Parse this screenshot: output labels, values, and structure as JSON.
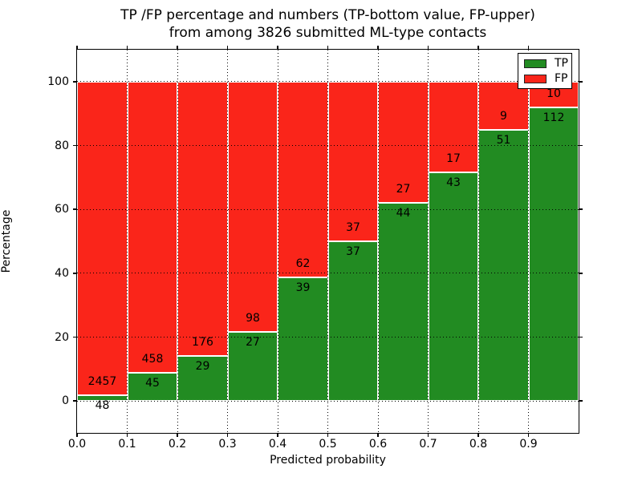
{
  "title": {
    "line1": "TP /FP percentage and numbers (TP-bottom value, FP-upper)",
    "line2": "from among 3826 submitted ML-type contacts"
  },
  "axes": {
    "xlabel": "Predicted probability",
    "ylabel": "Percentage"
  },
  "legend": {
    "position": "upper right",
    "entries": [
      {
        "label": "TP",
        "color_key": "tp"
      },
      {
        "label": "FP",
        "color_key": "fp"
      }
    ]
  },
  "colors": {
    "tp": "#228b22",
    "fp": "#fa251a",
    "background": "#ffffff",
    "grid": "#000000"
  },
  "chart_data": {
    "type": "bar",
    "stacked": true,
    "normalized_to_percent": true,
    "title": "TP /FP percentage and numbers (TP-bottom value, FP-upper) from among 3826 submitted ML-type contacts",
    "xlabel": "Predicted probability",
    "ylabel": "Percentage",
    "total_contacts": 3826,
    "categories": [
      "0.0",
      "0.1",
      "0.2",
      "0.3",
      "0.4",
      "0.5",
      "0.6",
      "0.7",
      "0.8",
      "0.9"
    ],
    "bin_width": 0.1,
    "series": [
      {
        "name": "TP",
        "color": "#228b22",
        "values": [
          48,
          45,
          29,
          27,
          39,
          37,
          44,
          43,
          51,
          112
        ]
      },
      {
        "name": "FP",
        "color": "#fa251a",
        "values": [
          2457,
          458,
          176,
          98,
          62,
          37,
          27,
          17,
          9,
          10
        ]
      }
    ],
    "tp_percent_per_bin": [
      1.92,
      8.95,
      14.15,
      21.6,
      38.61,
      50.0,
      61.97,
      71.67,
      85.0,
      91.8
    ],
    "xlim": [
      0.0,
      1.0
    ],
    "ylim": [
      -10,
      110
    ],
    "yticks": [
      0,
      20,
      40,
      60,
      80,
      100
    ],
    "xticks": [
      0.0,
      0.1,
      0.2,
      0.3,
      0.4,
      0.5,
      0.6,
      0.7,
      0.8,
      0.9
    ],
    "grid": "dotted",
    "legend_position": "upper right"
  }
}
